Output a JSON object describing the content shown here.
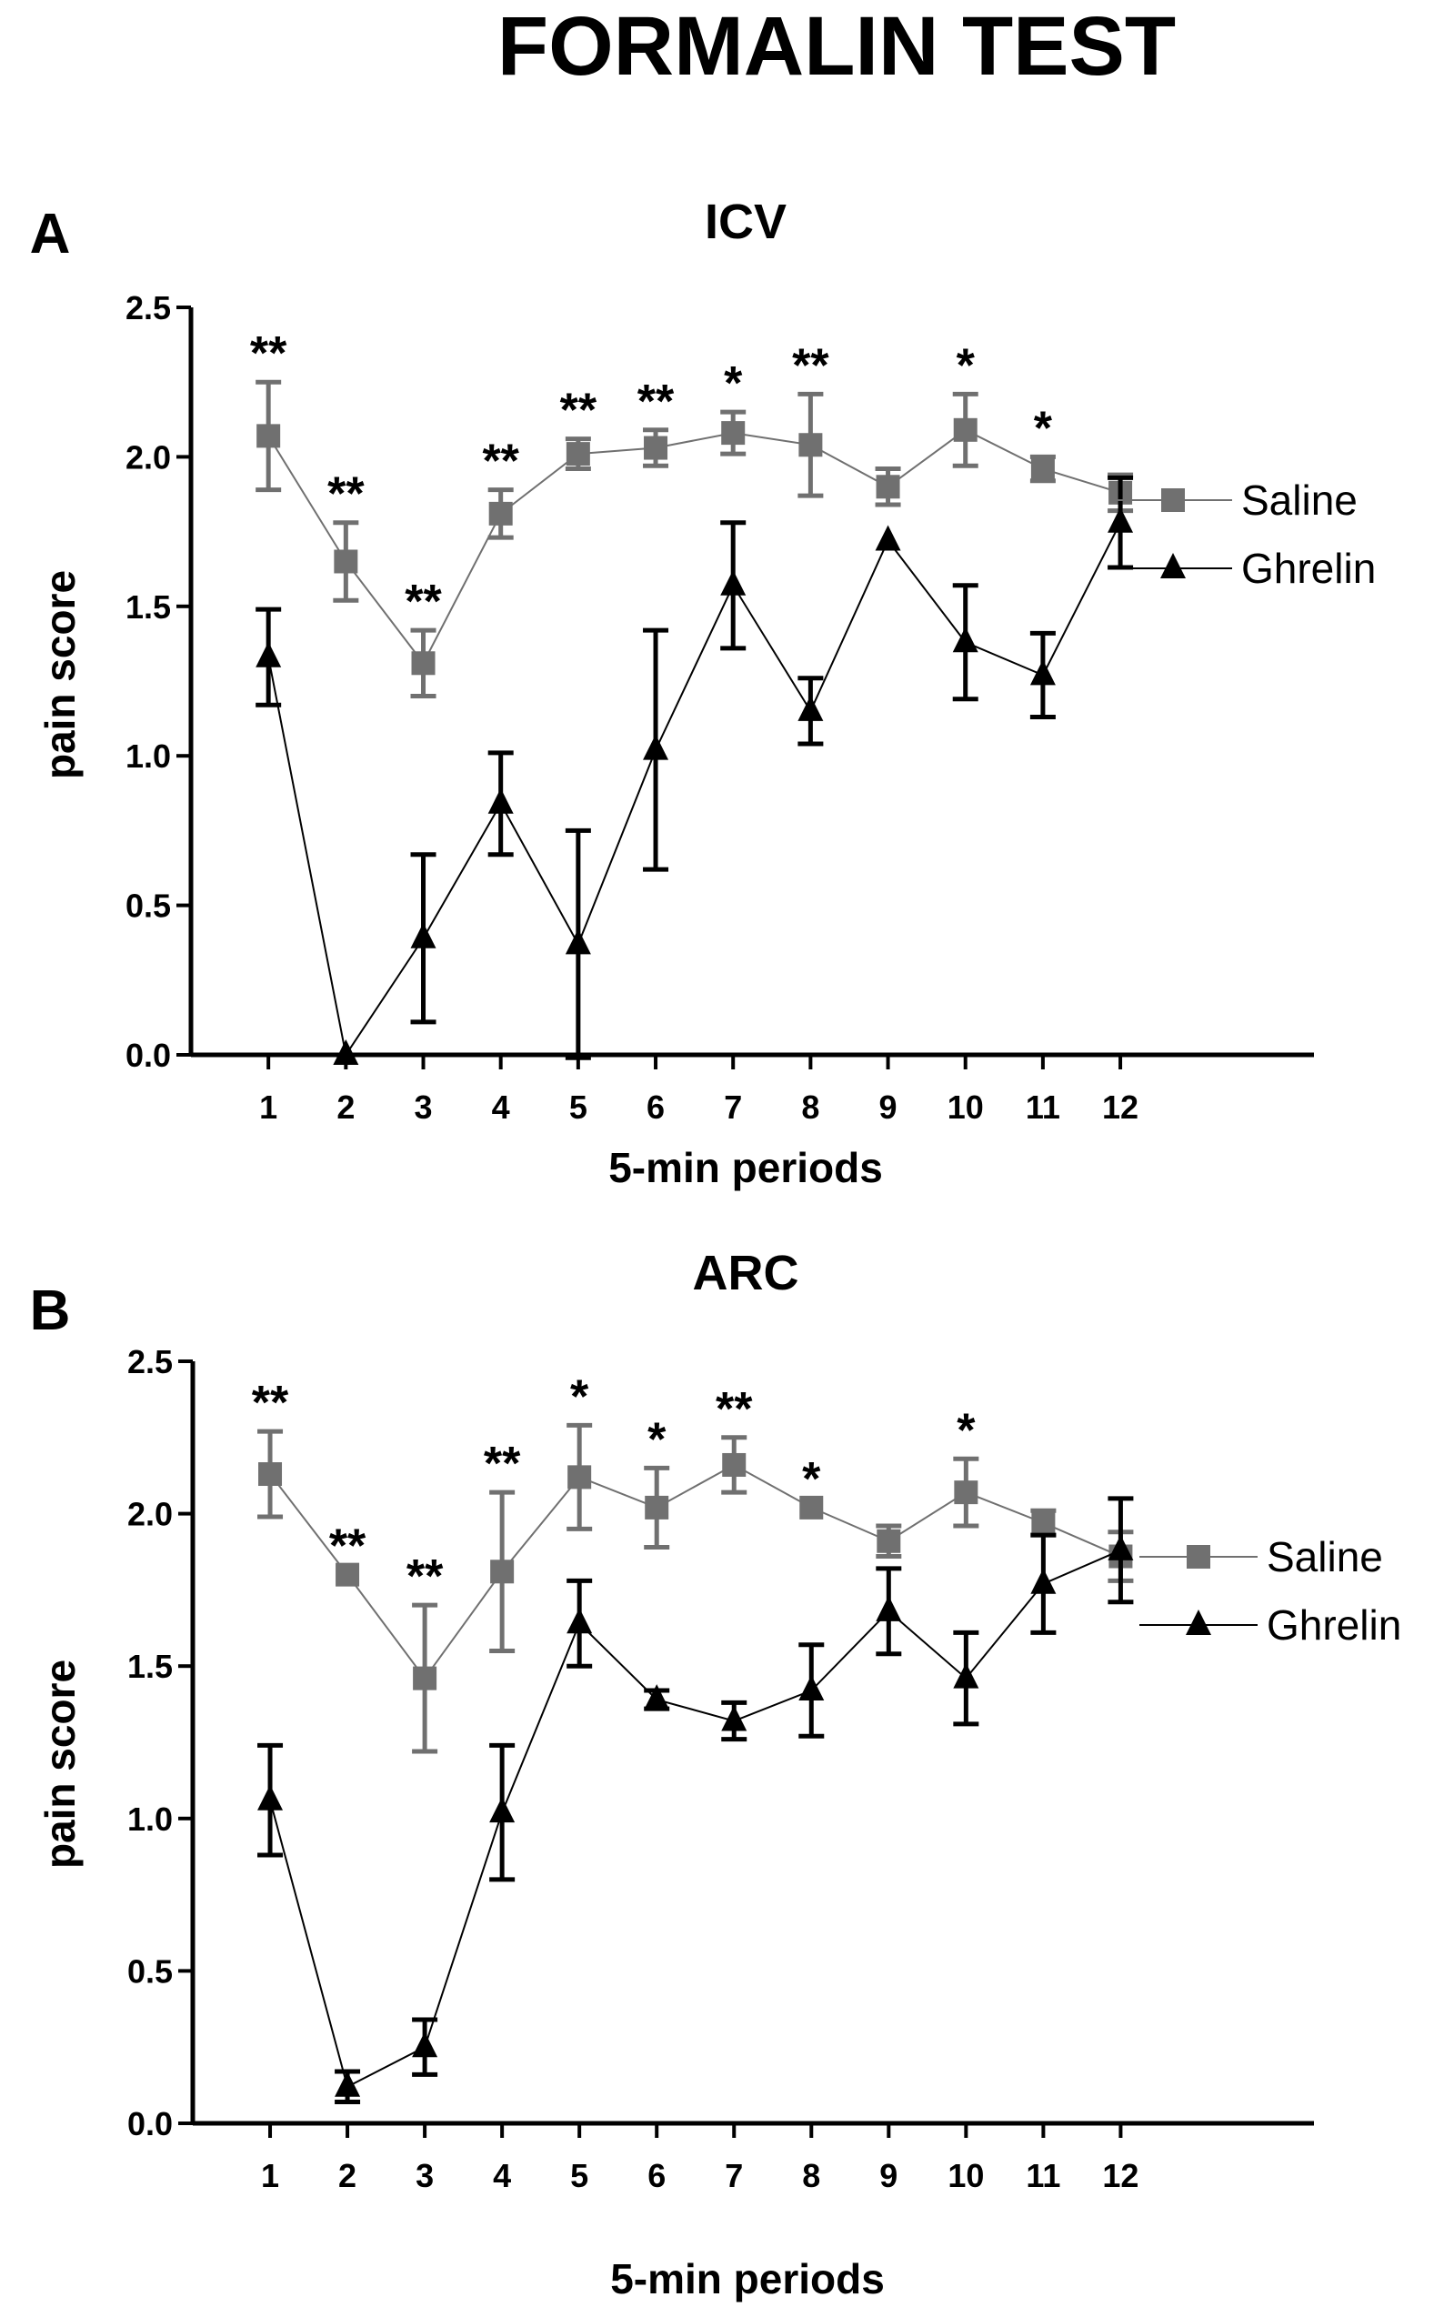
{
  "figure_title": "FORMALIN TEST",
  "colors": {
    "saline": "#707070",
    "ghrelin": "#000000",
    "axis": "#000000"
  },
  "chart_data": [
    {
      "panel": "A",
      "type": "line",
      "title": "ICV",
      "xlabel": "5-min periods",
      "ylabel": "pain score",
      "categories": [
        "1",
        "2",
        "3",
        "4",
        "5",
        "6",
        "7",
        "8",
        "9",
        "10",
        "11",
        "12"
      ],
      "x_range": [
        0,
        14.5
      ],
      "ylim": [
        0,
        2.5
      ],
      "yticks": [
        "0.0",
        "0.5",
        "1.0",
        "1.5",
        "2.0",
        "2.5"
      ],
      "legend_position": "right",
      "series": [
        {
          "name": "Saline",
          "marker": "square",
          "values": [
            2.07,
            1.65,
            1.31,
            1.81,
            2.01,
            2.03,
            2.08,
            2.04,
            1.9,
            2.09,
            1.96,
            1.88
          ],
          "errors": [
            0.18,
            0.13,
            0.11,
            0.08,
            0.05,
            0.06,
            0.07,
            0.17,
            0.06,
            0.12,
            0.04,
            0.06
          ]
        },
        {
          "name": "Ghrelin",
          "marker": "triangle",
          "values": [
            1.33,
            0.0,
            0.39,
            0.84,
            0.37,
            1.02,
            1.57,
            1.15,
            1.72,
            1.38,
            1.27,
            1.78
          ],
          "errors": [
            0.16,
            0.0,
            0.28,
            0.17,
            0.38,
            0.4,
            0.21,
            0.11,
            0.0,
            0.19,
            0.14,
            0.15
          ]
        }
      ],
      "annotations": [
        "**",
        "**",
        "**",
        "**",
        "**",
        "**",
        "*",
        "**",
        "",
        "*",
        "*",
        ""
      ]
    },
    {
      "panel": "B",
      "type": "line",
      "title": "ARC",
      "xlabel": "5-min periods",
      "ylabel": "pain score",
      "categories": [
        "1",
        "2",
        "3",
        "4",
        "5",
        "6",
        "7",
        "8",
        "9",
        "10",
        "11",
        "12"
      ],
      "x_range": [
        0,
        14.5
      ],
      "ylim": [
        0,
        2.5
      ],
      "yticks": [
        "0.0",
        "0.5",
        "1.0",
        "1.5",
        "2.0",
        "2.5"
      ],
      "legend_position": "right",
      "series": [
        {
          "name": "Saline",
          "marker": "square",
          "values": [
            2.13,
            1.8,
            1.46,
            1.81,
            2.12,
            2.02,
            2.16,
            2.02,
            1.91,
            2.07,
            1.97,
            1.86
          ],
          "errors": [
            0.14,
            0.0,
            0.24,
            0.26,
            0.17,
            0.13,
            0.09,
            0.0,
            0.05,
            0.11,
            0.04,
            0.08
          ]
        },
        {
          "name": "Ghrelin",
          "marker": "triangle",
          "values": [
            1.06,
            0.12,
            0.25,
            1.02,
            1.64,
            1.39,
            1.32,
            1.42,
            1.68,
            1.46,
            1.77,
            1.88
          ],
          "errors": [
            0.18,
            0.05,
            0.09,
            0.22,
            0.14,
            0.03,
            0.06,
            0.15,
            0.14,
            0.15,
            0.16,
            0.17
          ]
        }
      ],
      "annotations": [
        "**",
        "**",
        "**",
        "**",
        "*",
        "*",
        "**",
        "*",
        "",
        "*",
        "",
        ""
      ]
    }
  ]
}
